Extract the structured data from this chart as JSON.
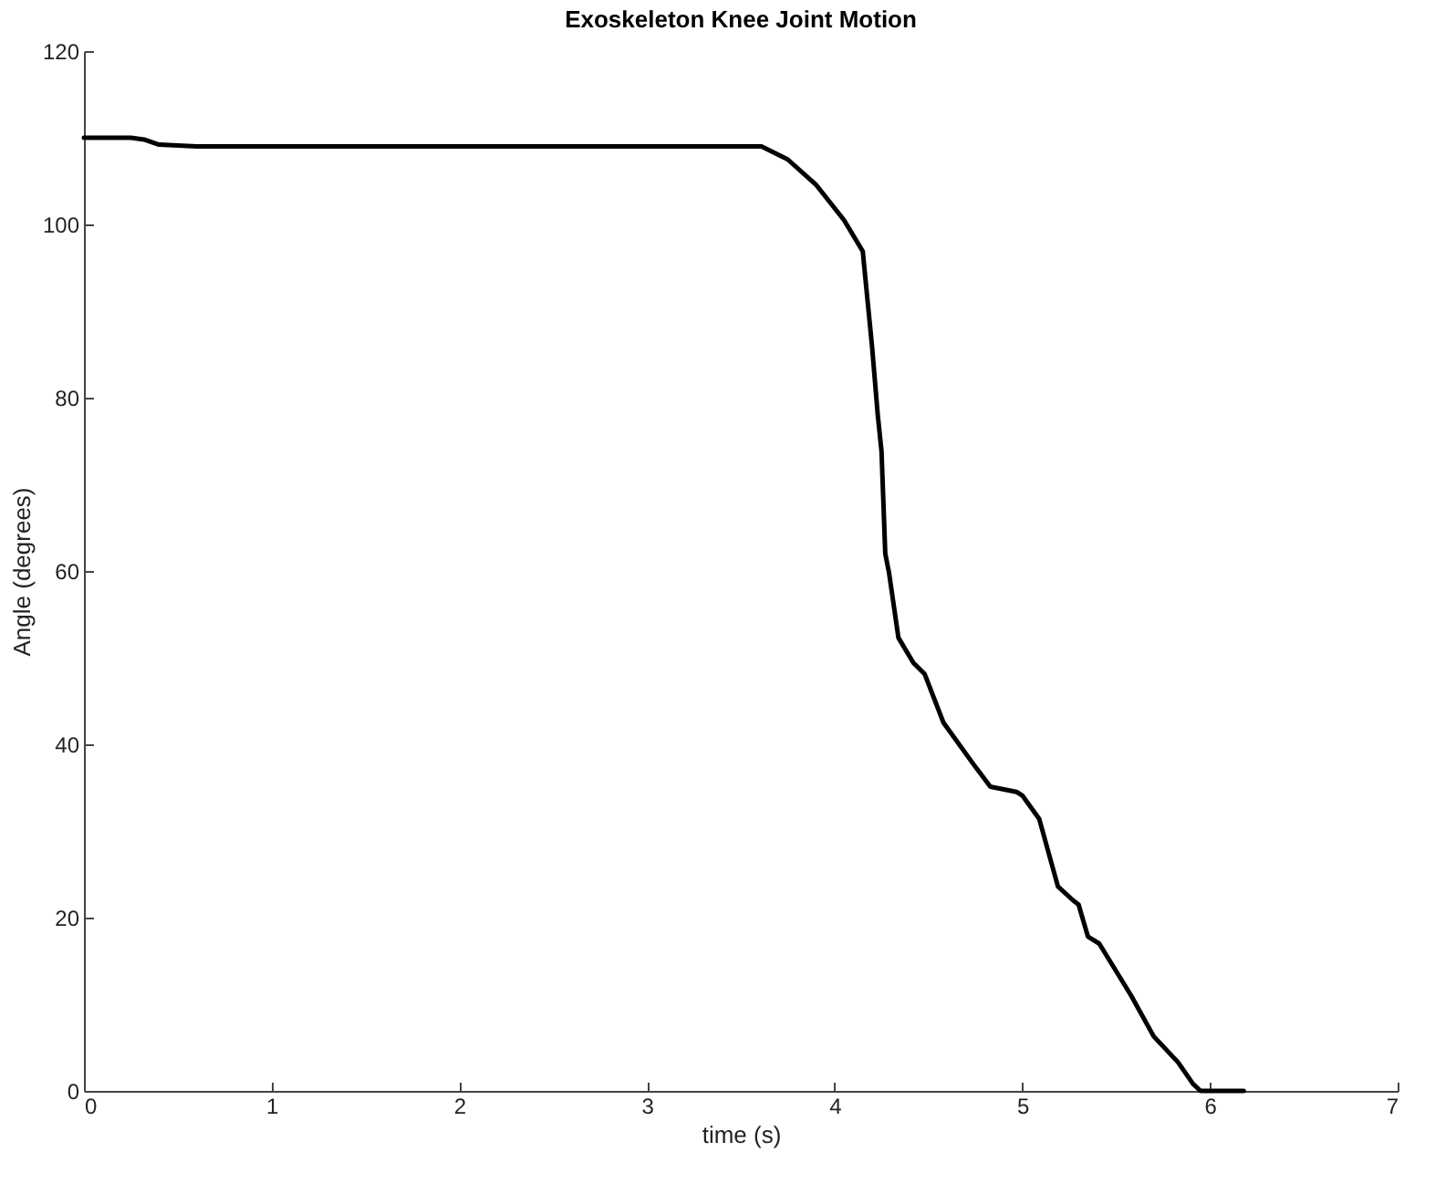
{
  "chart_data": {
    "type": "line",
    "title": "Exoskeleton Knee Joint Motion",
    "xlabel": "time (s)",
    "ylabel": "Angle (degrees)",
    "x": [
      0,
      0.25,
      0.32,
      0.4,
      0.6,
      1,
      2,
      3,
      3.5,
      3.61,
      3.75,
      3.9,
      4.05,
      4.15,
      4.2,
      4.23,
      4.25,
      4.27,
      4.29,
      4.34,
      4.42,
      4.48,
      4.58,
      4.74,
      4.83,
      4.97,
      5.0,
      5.09,
      5.19,
      5.27,
      5.3,
      5.35,
      5.41,
      5.58,
      5.7,
      5.83,
      5.91,
      5.95,
      6.18
    ],
    "series": [
      {
        "color": "#000000",
        "values": [
          110,
          110,
          109.8,
          109.2,
          109,
          109,
          109,
          109,
          109,
          109,
          107.5,
          104.6,
          100.5,
          96.9,
          85.8,
          78,
          73.8,
          62,
          59.8,
          52.3,
          49.4,
          48.1,
          42.5,
          37.7,
          35.1,
          34.5,
          34.1,
          31.4,
          23.6,
          22,
          21.5,
          17.8,
          17,
          11,
          6.3,
          3.3,
          0.8,
          0,
          0
        ]
      }
    ],
    "xlim": [
      0,
      7
    ],
    "xticks": [
      0,
      1,
      2,
      3,
      4,
      5,
      6,
      7
    ],
    "ylim": [
      0,
      120
    ],
    "yticks": [
      0,
      20,
      40,
      60,
      80,
      100,
      120
    ],
    "grid": false,
    "line_style": "solid"
  }
}
